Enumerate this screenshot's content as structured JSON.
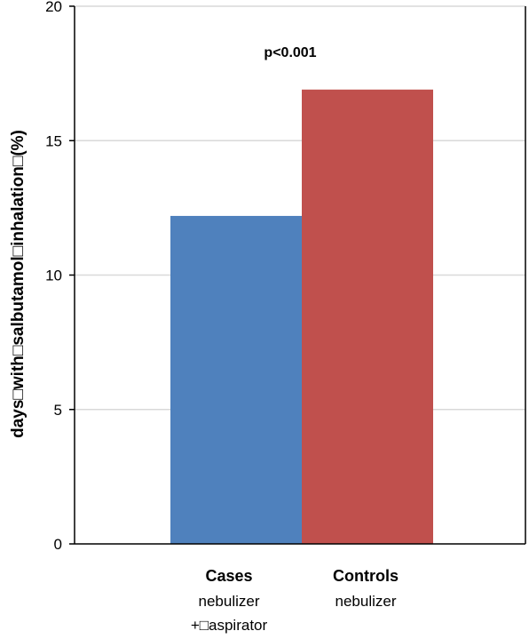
{
  "chart_data": {
    "type": "bar",
    "ylabel": "days□with□salbutamol□inhalation□(%)",
    "ylim": [
      0,
      20
    ],
    "yticks": [
      0,
      5,
      10,
      15,
      20
    ],
    "grid": true,
    "annotation": "p<0.001",
    "categories": [
      {
        "title": "Cases",
        "lines": [
          "nebulizer",
          "+□aspirator"
        ]
      },
      {
        "title": "Controls",
        "lines": [
          "nebulizer"
        ]
      }
    ],
    "values": [
      12.2,
      16.9
    ],
    "colors": [
      "#4f81bd",
      "#c0504d"
    ]
  }
}
